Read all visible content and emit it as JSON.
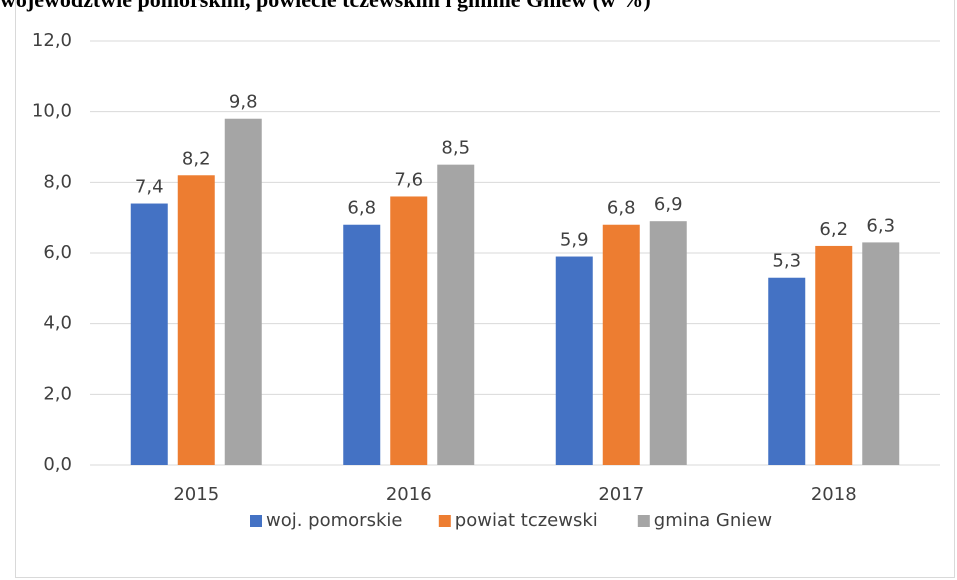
{
  "chart_data": {
    "type": "bar",
    "title": "województwie pomorskim, powiecie tczewskim i gminie Gniew (w %)",
    "categories": [
      "2015",
      "2016",
      "2017",
      "2018"
    ],
    "series": [
      {
        "name": "woj. pomorskie",
        "color": "#4472c4",
        "values": [
          7.4,
          6.8,
          5.9,
          5.3
        ],
        "value_labels": [
          "7,4",
          "6,8",
          "5,9",
          "5,3"
        ]
      },
      {
        "name": "powiat tczewski",
        "color": "#ed7d31",
        "values": [
          8.2,
          7.6,
          6.8,
          6.2
        ],
        "value_labels": [
          "8,2",
          "7,6",
          "6,8",
          "6,2"
        ]
      },
      {
        "name": "gmina Gniew",
        "color": "#a5a5a5",
        "values": [
          9.8,
          8.5,
          6.9,
          6.3
        ],
        "value_labels": [
          "9,8",
          "8,5",
          "6,9",
          "6,3"
        ]
      }
    ],
    "ylim": [
      0,
      12
    ],
    "yticks": [
      {
        "value": 0,
        "label": "0,0"
      },
      {
        "value": 2,
        "label": "2,0"
      },
      {
        "value": 4,
        "label": "4,0"
      },
      {
        "value": 6,
        "label": "6,0"
      },
      {
        "value": 8,
        "label": "8,0"
      },
      {
        "value": 10,
        "label": "10,0"
      },
      {
        "value": 12,
        "label": "12,0"
      }
    ],
    "grid": true,
    "legend": "bottom"
  }
}
